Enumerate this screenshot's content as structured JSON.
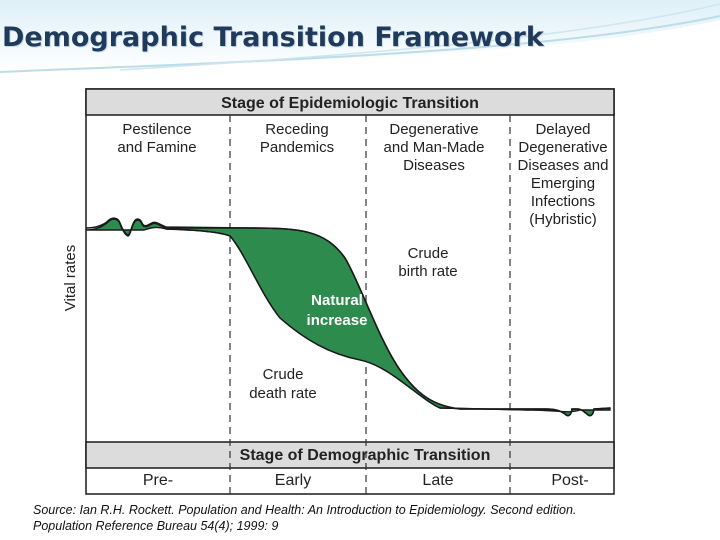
{
  "slide": {
    "title": "Demographic Transition  Framework"
  },
  "figure": {
    "epi_header": "Stage of Epidemiologic Transition",
    "epi_stages": [
      [
        "Pestilence",
        "and Famine"
      ],
      [
        "Receding",
        "Pandemics"
      ],
      [
        "Degenerative",
        "and Man-Made",
        "Diseases"
      ],
      [
        "Delayed",
        "Degenerative",
        "Diseases and",
        "Emerging",
        "Infections",
        "(Hybristic)"
      ]
    ],
    "y_axis_label": "Vital rates",
    "labels": {
      "crude_birth_rate": [
        "Crude",
        "birth rate"
      ],
      "natural_increase": [
        "Natural",
        "increase"
      ],
      "crude_death_rate": [
        "Crude",
        "death rate"
      ]
    },
    "demo_header": "Stage of Demographic Transition",
    "demo_stages": [
      "Pre-",
      "Early",
      "Late",
      "Post-"
    ]
  },
  "colors": {
    "header_band": "#dcdcdc",
    "natural_increase_fill": "#2e8b4e",
    "curve_stroke": "#1a1a1a",
    "title": "#1f3a5a"
  },
  "source": {
    "line1": "Source:  Ian R.H. Rockett.  Population and Health: An Introduction to Epidemiology. Second edition.",
    "line2": "Population Reference Bureau  54(4); 1999: 9"
  }
}
